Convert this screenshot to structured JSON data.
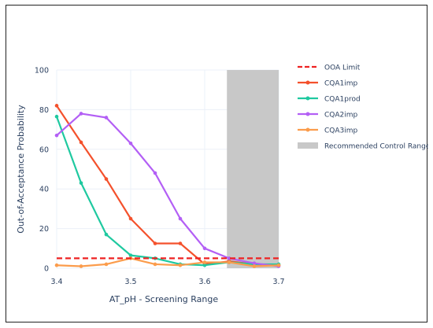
{
  "chart_data": {
    "type": "line",
    "xlabel": "AT_pH -  Screening Range",
    "ylabel": "Out-of-Acceptance Probability",
    "xlim": [
      3.4,
      3.7
    ],
    "ylim": [
      0,
      100
    ],
    "x_ticks": [
      "3.4",
      "3.5",
      "3.6",
      "3.7"
    ],
    "y_ticks": [
      "0",
      "20",
      "40",
      "60",
      "80",
      "100"
    ],
    "grid": true,
    "legend_position": "right",
    "ooa_limit": {
      "name": "OOA Limit",
      "value": 5,
      "color": "#ee2222"
    },
    "control_range": {
      "name": "Recommended Control Range",
      "x": [
        3.63,
        3.7
      ],
      "color": "#c8c8c8"
    },
    "series": [
      {
        "name": "CQA1imp",
        "color": "#f4512c",
        "x": [
          3.4,
          3.433,
          3.467,
          3.5,
          3.533,
          3.567,
          3.6,
          3.633,
          3.667,
          3.7
        ],
        "y": [
          82,
          63.5,
          45,
          25,
          12.5,
          12.5,
          2,
          3.5,
          2,
          1.5
        ]
      },
      {
        "name": "CQA1prod",
        "color": "#1fc9a0",
        "x": [
          3.4,
          3.433,
          3.467,
          3.5,
          3.533,
          3.567,
          3.6,
          3.633,
          3.667,
          3.7
        ],
        "y": [
          76.5,
          43,
          17,
          6.5,
          5,
          2,
          1.5,
          3,
          2,
          2
        ]
      },
      {
        "name": "CQA2imp",
        "color": "#b35ff5",
        "x": [
          3.4,
          3.433,
          3.467,
          3.5,
          3.533,
          3.567,
          3.6,
          3.633,
          3.667,
          3.7
        ],
        "y": [
          67,
          78,
          76,
          63,
          48,
          25,
          10,
          5,
          2.5,
          1
        ]
      },
      {
        "name": "CQA3imp",
        "color": "#fb9c4c",
        "x": [
          3.4,
          3.433,
          3.467,
          3.5,
          3.533,
          3.567,
          3.6,
          3.633,
          3.667,
          3.7
        ],
        "y": [
          1.5,
          1,
          2,
          5,
          2,
          1.5,
          3,
          3,
          1,
          1.5
        ]
      }
    ]
  }
}
